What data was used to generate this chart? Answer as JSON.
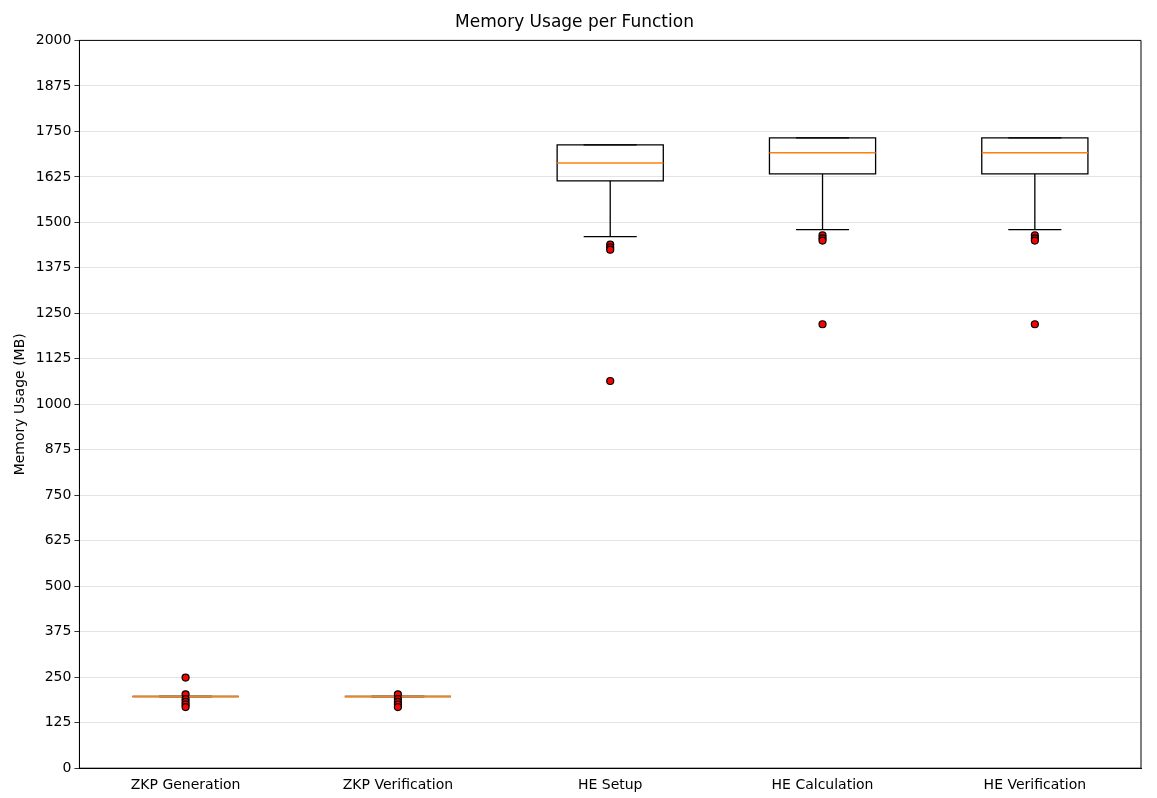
{
  "chart_data": {
    "type": "box",
    "title": "Memory Usage per Function",
    "ylabel": "Memory Usage (MB)",
    "categories": [
      "ZKP Generation",
      "ZKP Verification",
      "HE Setup",
      "HE Calculation",
      "HE Verification"
    ],
    "boxes": [
      {
        "low": 197,
        "q1": 197,
        "median": 197,
        "q3": 197,
        "high": 197,
        "outliers": [
          249,
          203,
          190,
          182,
          175,
          168
        ]
      },
      {
        "low": 197,
        "q1": 197,
        "median": 197,
        "q3": 197,
        "high": 197,
        "outliers": [
          203,
          190,
          182,
          175,
          168
        ]
      },
      {
        "low": 1461,
        "q1": 1614,
        "median": 1663,
        "q3": 1713,
        "high": 1713,
        "outliers": [
          1439,
          1431,
          1425,
          1064
        ]
      },
      {
        "low": 1480,
        "q1": 1633,
        "median": 1691,
        "q3": 1732,
        "high": 1732,
        "outliers": [
          1464,
          1456,
          1450,
          1220
        ]
      },
      {
        "low": 1480,
        "q1": 1633,
        "median": 1691,
        "q3": 1732,
        "high": 1732,
        "outliers": [
          1464,
          1456,
          1450,
          1220
        ]
      }
    ],
    "ylim": [
      0,
      2000
    ],
    "yticks": [
      0,
      125,
      250,
      375,
      500,
      625,
      750,
      875,
      1000,
      1125,
      1250,
      1375,
      1500,
      1625,
      1750,
      1875,
      2000
    ],
    "grid": "y",
    "marker": "circle"
  }
}
